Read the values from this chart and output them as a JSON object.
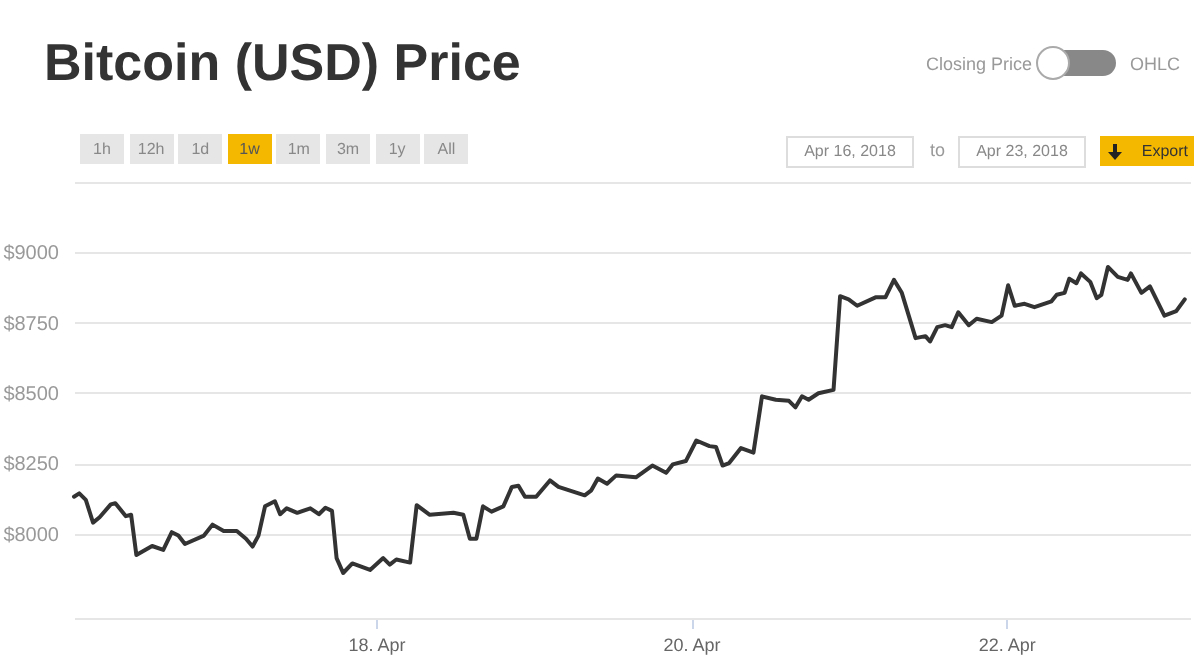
{
  "chart_data": {
    "type": "line",
    "title": "Bitcoin (USD) Price",
    "annotations": [
      "1h",
      "12h",
      "1d",
      "1w",
      "1m",
      "3m",
      "1y",
      "All",
      "Closing Price",
      "OHLC",
      "Apr 16, 2018",
      "to",
      "Apr 23, 2018",
      "Export"
    ],
    "x": [
      "2018-04-16T02:00",
      "2018-04-16T02:48",
      "2018-04-16T03:48",
      "2018-04-16T04:54",
      "2018-04-16T05:54",
      "2018-04-16T07:36",
      "2018-04-16T08:18",
      "2018-04-16T09:54",
      "2018-04-16T10:42",
      "2018-04-16T11:30",
      "2018-04-16T13:54",
      "2018-04-16T15:36",
      "2018-04-16T16:54",
      "2018-04-16T17:54",
      "2018-04-16T18:54",
      "2018-04-16T21:48",
      "2018-04-16T23:06",
      "2018-04-17T00:48",
      "2018-04-17T02:48",
      "2018-04-17T04:12",
      "2018-04-17T05:12",
      "2018-04-17T06:06",
      "2018-04-17T07:06",
      "2018-04-17T08:36",
      "2018-04-17T09:24",
      "2018-04-17T10:24",
      "2018-04-17T12:00",
      "2018-04-17T14:00",
      "2018-04-17T15:18",
      "2018-04-17T16:18",
      "2018-04-17T17:18",
      "2018-04-17T18:00",
      "2018-04-17T19:00",
      "2018-04-17T20:24",
      "2018-04-17T23:06",
      "2018-04-18T01:06",
      "2018-04-18T02:06",
      "2018-04-18T03:06",
      "2018-04-18T05:12",
      "2018-04-18T06:12",
      "2018-04-18T08:12",
      "2018-04-18T11:48",
      "2018-04-18T13:18",
      "2018-04-18T14:18",
      "2018-04-18T15:18",
      "2018-04-18T16:18",
      "2018-04-18T17:36",
      "2018-04-18T19:24",
      "2018-04-18T20:42",
      "2018-04-18T21:42",
      "2018-04-18T22:42",
      "2018-04-19T00:24",
      "2018-04-19T02:30",
      "2018-04-19T03:48",
      "2018-04-19T07:48",
      "2018-04-19T08:48",
      "2018-04-19T09:48",
      "2018-04-19T11:12",
      "2018-04-19T12:36",
      "2018-04-19T15:36",
      "2018-04-19T18:06",
      "2018-04-19T20:12",
      "2018-04-19T21:12",
      "2018-04-19T23:12",
      "2018-04-20T00:48",
      "2018-04-20T02:48",
      "2018-04-20T03:48",
      "2018-04-20T04:48",
      "2018-04-20T05:48",
      "2018-04-20T07:36",
      "2018-04-20T09:30",
      "2018-04-20T10:48",
      "2018-04-20T12:54",
      "2018-04-20T14:54",
      "2018-04-20T15:54",
      "2018-04-20T16:54",
      "2018-04-20T17:54",
      "2018-04-20T19:24",
      "2018-04-20T21:42",
      "2018-04-20T22:42",
      "2018-04-21T00:00",
      "2018-04-21T01:18",
      "2018-04-21T04:06",
      "2018-04-21T05:36",
      "2018-04-21T06:54",
      "2018-04-21T08:06",
      "2018-04-21T10:12",
      "2018-04-21T11:42",
      "2018-04-21T12:24",
      "2018-04-21T13:30",
      "2018-04-21T14:42",
      "2018-04-21T15:42",
      "2018-04-21T16:42",
      "2018-04-21T18:18",
      "2018-04-21T19:30",
      "2018-04-21T21:48",
      "2018-04-21T23:18",
      "2018-04-22T00:18",
      "2018-04-22T01:18",
      "2018-04-22T02:48",
      "2018-04-22T04:18",
      "2018-04-22T06:54",
      "2018-04-22T07:42",
      "2018-04-22T08:54",
      "2018-04-22T09:36",
      "2018-04-22T10:42",
      "2018-04-22T11:24",
      "2018-04-22T12:48",
      "2018-04-22T13:48",
      "2018-04-22T14:30",
      "2018-04-22T15:30",
      "2018-04-22T17:00",
      "2018-04-22T18:30",
      "2018-04-22T19:00",
      "2018-04-22T20:36",
      "2018-04-22T21:54",
      "2018-04-23T00:06",
      "2018-04-23T01:54",
      "2018-04-23T03:12"
    ],
    "series": [
      {
        "color": "#333333",
        "values": [
          8131,
          8143,
          8120,
          8039,
          8058,
          8104,
          8108,
          8062,
          8067,
          7924,
          7956,
          7942,
          8005,
          7993,
          7963,
          7993,
          8032,
          8009,
          8009,
          7982,
          7954,
          7993,
          8097,
          8115,
          8069,
          8090,
          8074,
          8090,
          8069,
          8092,
          8081,
          7913,
          7860,
          7894,
          7871,
          7913,
          7890,
          7908,
          7897,
          8101,
          8067,
          8074,
          8067,
          7982,
          7982,
          8097,
          8078,
          8097,
          8166,
          8170,
          8131,
          8131,
          8189,
          8166,
          8136,
          8154,
          8196,
          8177,
          8207,
          8200,
          8242,
          8216,
          8246,
          8258,
          8331,
          8311,
          8308,
          8242,
          8251,
          8304,
          8288,
          8488,
          8476,
          8472,
          8449,
          8488,
          8476,
          8499,
          8511,
          8844,
          8833,
          8810,
          8840,
          8840,
          8902,
          8856,
          8695,
          8702,
          8683,
          8734,
          8741,
          8734,
          8787,
          8741,
          8764,
          8752,
          8775,
          8883,
          8810,
          8817,
          8805,
          8826,
          8849,
          8856,
          8906,
          8890,
          8925,
          8895,
          8837,
          8849,
          8948,
          8913,
          8902,
          8925,
          8856,
          8879,
          8775,
          8791,
          8833
        ]
      }
    ],
    "xlim": [
      "2018-04-16T02:00",
      "2018-04-23T04:00"
    ],
    "xticks": [
      {
        "value": "2018-04-18",
        "label": "18. Apr"
      },
      {
        "value": "2018-04-20",
        "label": "20. Apr"
      },
      {
        "value": "2018-04-22",
        "label": "22. Apr"
      }
    ],
    "ylim": [
      7700,
      9250
    ],
    "yticks": [
      {
        "value": 8000,
        "label": "$8000"
      },
      {
        "value": 8250,
        "label": "$8250"
      },
      {
        "value": 8500,
        "label": "$8500"
      },
      {
        "value": 8750,
        "label": "$8750"
      },
      {
        "value": 9000,
        "label": "$9000"
      },
      {
        "value": 9250,
        "label": null
      }
    ],
    "grid": "y",
    "marker": "none",
    "line_style": "solid"
  }
}
